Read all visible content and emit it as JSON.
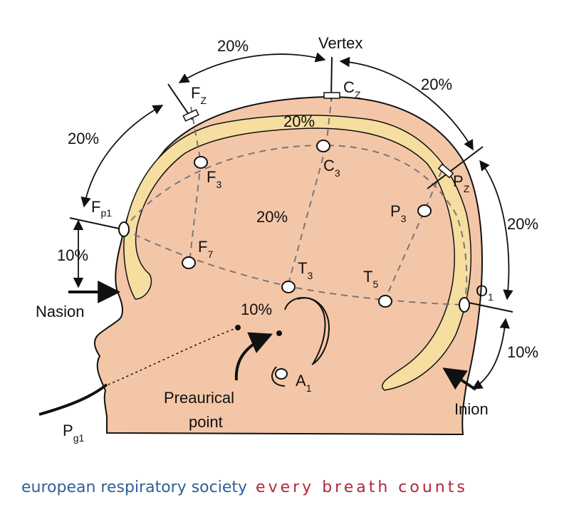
{
  "labels": {
    "vertex": "Vertex",
    "nasion": "Nasion",
    "inion": "Inion",
    "preauricular": "Preaurical",
    "preauricular2": "point"
  },
  "electrodes": {
    "fz": {
      "main": "F",
      "sub": "Z"
    },
    "cz": {
      "main": "C",
      "sub": "Z"
    },
    "pz": {
      "main": "P",
      "sub": "Z"
    },
    "fp1": {
      "main": "F",
      "sub": "p1"
    },
    "f3": {
      "main": "F",
      "sub": "3"
    },
    "c3": {
      "main": "C",
      "sub": "3"
    },
    "p3": {
      "main": "P",
      "sub": "3"
    },
    "f7": {
      "main": "F",
      "sub": "7"
    },
    "t3": {
      "main": "T",
      "sub": "3"
    },
    "t5": {
      "main": "T",
      "sub": "5"
    },
    "o1": {
      "main": "O",
      "sub": "1"
    },
    "a1": {
      "main": "A",
      "sub": "1"
    },
    "pg1": {
      "main": "P",
      "sub": "g1"
    }
  },
  "percentages": {
    "top_left": "20%",
    "top_right": "20%",
    "left_upper": "20%",
    "right_upper": "20%",
    "inner_top": "20%",
    "center": "20%",
    "left_lower": "10%",
    "right_lower": "10%",
    "ear": "10%"
  },
  "footer": {
    "org": "european respiratory society",
    "tagline": "every breath counts"
  },
  "colors": {
    "skin": "#f4c6a8",
    "skull": "#f5dea0",
    "outline": "#111111",
    "org_text": "#2f5f95",
    "tag_text": "#b0263b"
  }
}
